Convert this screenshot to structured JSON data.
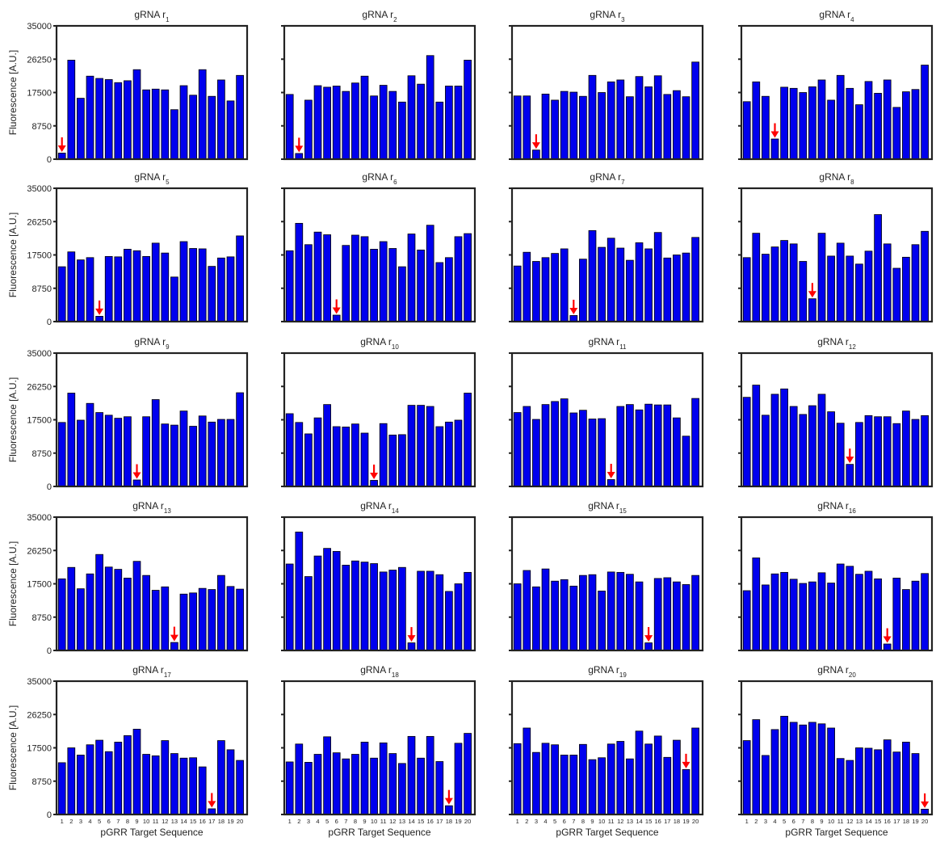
{
  "figure": {
    "ylabel": "Fluorescence [A.U.]",
    "xlabel": "pGRR Target Sequence",
    "title_prefix": "gRNA r"
  },
  "colors": {
    "bar": "#0000ee",
    "bar_edge": "#000000",
    "arrow": "#ff0000",
    "frame": "#222222",
    "text": "#222222"
  },
  "chart_data": {
    "type": "bar",
    "grid": false,
    "layout": "5 rows x 4 columns of small multiples",
    "ylim": [
      0,
      35000
    ],
    "yticks": [
      0,
      8750,
      17500,
      26250,
      35000
    ],
    "categories": [
      "1",
      "2",
      "3",
      "4",
      "5",
      "6",
      "7",
      "8",
      "9",
      "10",
      "11",
      "12",
      "13",
      "14",
      "15",
      "16",
      "17",
      "18",
      "19",
      "20"
    ],
    "annotation": "red downward arrow marks the bar whose target index equals the gRNA index",
    "series": [
      {
        "name": "gRNA r1",
        "subscript": "1",
        "marked": 1,
        "values": [
          1600,
          26000,
          16000,
          21800,
          21200,
          20900,
          20100,
          20600,
          23500,
          18200,
          18400,
          18200,
          13000,
          19300,
          16800,
          23500,
          16500,
          20800,
          15300,
          22000
        ]
      },
      {
        "name": "gRNA r2",
        "subscript": "2",
        "marked": 2,
        "values": [
          17000,
          1500,
          15500,
          19300,
          18900,
          19200,
          17800,
          20000,
          21800,
          16600,
          19400,
          17800,
          15000,
          21900,
          19700,
          27200,
          15000,
          19200,
          19200,
          26000
        ]
      },
      {
        "name": "gRNA r3",
        "subscript": "3",
        "marked": 3,
        "values": [
          16600,
          16600,
          2400,
          17100,
          15500,
          17800,
          17600,
          16500,
          22000,
          17500,
          20300,
          20800,
          16400,
          21700,
          19000,
          21900,
          17000,
          18000,
          16400,
          25500
        ]
      },
      {
        "name": "gRNA r4",
        "subscript": "4",
        "marked": 4,
        "values": [
          15100,
          20300,
          16500,
          5300,
          18900,
          18600,
          17500,
          19000,
          20800,
          15500,
          22000,
          18600,
          14300,
          20400,
          17300,
          20800,
          13600,
          17700,
          18300,
          24700
        ]
      },
      {
        "name": "gRNA r5",
        "subscript": "5",
        "marked": 5,
        "values": [
          14400,
          18300,
          16200,
          16800,
          1400,
          17100,
          17000,
          19000,
          18600,
          17100,
          20600,
          18000,
          11700,
          21000,
          19200,
          19100,
          14500,
          16700,
          17000,
          22500
        ]
      },
      {
        "name": "gRNA r6",
        "subscript": "6",
        "marked": 6,
        "values": [
          18600,
          25800,
          20200,
          23500,
          22800,
          1700,
          20000,
          22700,
          22300,
          19000,
          21000,
          19200,
          14400,
          23000,
          18800,
          25300,
          15500,
          16800,
          22300,
          23100
        ]
      },
      {
        "name": "gRNA r7",
        "subscript": "7",
        "marked": 7,
        "values": [
          14600,
          18200,
          15800,
          16800,
          17900,
          19100,
          1600,
          16400,
          23900,
          19500,
          21900,
          19300,
          16100,
          20700,
          19100,
          23400,
          16700,
          17500,
          18000,
          22100
        ]
      },
      {
        "name": "gRNA r8",
        "subscript": "8",
        "marked": 8,
        "values": [
          16800,
          23200,
          17700,
          19600,
          21300,
          20400,
          15800,
          6000,
          23200,
          17200,
          20600,
          17200,
          15100,
          18500,
          28100,
          20400,
          14000,
          16900,
          20200,
          23700
        ]
      },
      {
        "name": "gRNA r9",
        "subscript": "9",
        "marked": 9,
        "values": [
          16800,
          24500,
          17400,
          21800,
          19400,
          18700,
          17900,
          18300,
          1700,
          18300,
          22800,
          16400,
          16100,
          19800,
          15800,
          18500,
          16900,
          17600,
          17600,
          24600
        ]
      },
      {
        "name": "gRNA r10",
        "subscript": "10",
        "marked": 10,
        "values": [
          19100,
          16800,
          13800,
          18000,
          21500,
          15700,
          15600,
          16400,
          14000,
          1600,
          16500,
          13500,
          13600,
          21300,
          21300,
          21000,
          15700,
          16900,
          17400,
          24500
        ]
      },
      {
        "name": "gRNA r11",
        "subscript": "11",
        "marked": 11,
        "values": [
          19400,
          21000,
          17600,
          21500,
          22300,
          23000,
          19300,
          20000,
          17700,
          17800,
          1800,
          21000,
          21500,
          20100,
          21600,
          21400,
          21400,
          18000,
          13200,
          23100
        ]
      },
      {
        "name": "gRNA r12",
        "subscript": "12",
        "marked": 12,
        "values": [
          23400,
          26600,
          18700,
          24200,
          25600,
          21000,
          18900,
          21200,
          24200,
          19600,
          16600,
          5800,
          16800,
          18600,
          18300,
          18300,
          16500,
          19800,
          17600,
          18600
        ]
      },
      {
        "name": "gRNA r13",
        "subscript": "13",
        "marked": 13,
        "values": [
          18800,
          21800,
          16200,
          20100,
          25200,
          21900,
          21300,
          19000,
          23400,
          19700,
          15800,
          16700,
          2100,
          14800,
          15100,
          16300,
          16000,
          19700,
          16800,
          16100
        ]
      },
      {
        "name": "gRNA r14",
        "subscript": "14",
        "marked": 14,
        "values": [
          22700,
          31100,
          19400,
          24800,
          26800,
          26000,
          22400,
          23500,
          23200,
          22800,
          20600,
          21100,
          21800,
          2000,
          20800,
          20800,
          19900,
          15500,
          17500,
          20500
        ]
      },
      {
        "name": "gRNA r15",
        "subscript": "15",
        "marked": 15,
        "values": [
          17500,
          21000,
          16700,
          21400,
          18200,
          18600,
          16900,
          19700,
          19900,
          15600,
          20600,
          20500,
          20000,
          18000,
          2000,
          18900,
          19100,
          18000,
          17300,
          19700
        ]
      },
      {
        "name": "gRNA r16",
        "subscript": "16",
        "marked": 16,
        "values": [
          15700,
          24300,
          17200,
          20100,
          20500,
          18700,
          17600,
          18000,
          20400,
          17700,
          22700,
          22100,
          20000,
          20800,
          18800,
          1700,
          19000,
          16000,
          18200,
          20200
        ]
      },
      {
        "name": "gRNA r17",
        "subscript": "17",
        "marked": 17,
        "values": [
          13600,
          17500,
          15600,
          18300,
          19500,
          16500,
          19000,
          20700,
          22400,
          15800,
          15400,
          19400,
          16000,
          14800,
          14900,
          12500,
          1500,
          19400,
          17000,
          14200
        ]
      },
      {
        "name": "gRNA r18",
        "subscript": "18",
        "marked": 18,
        "values": [
          13800,
          18500,
          13700,
          15800,
          20400,
          16200,
          14600,
          15800,
          19000,
          14800,
          18800,
          16000,
          13400,
          20500,
          14800,
          20500,
          13900,
          2300,
          18700,
          21300
        ]
      },
      {
        "name": "gRNA r19",
        "subscript": "19",
        "marked": 19,
        "values": [
          18600,
          22700,
          16300,
          18700,
          18300,
          15600,
          15600,
          18400,
          14400,
          14900,
          18500,
          19200,
          14600,
          21900,
          18500,
          20600,
          15000,
          19500,
          11800,
          22700
        ]
      },
      {
        "name": "gRNA r20",
        "subscript": "20",
        "marked": 20,
        "values": [
          19400,
          24900,
          15500,
          22300,
          25800,
          24200,
          23500,
          24200,
          23800,
          22700,
          14700,
          14200,
          17500,
          17400,
          17000,
          19600,
          16400,
          19000,
          16000,
          1400
        ]
      }
    ]
  }
}
